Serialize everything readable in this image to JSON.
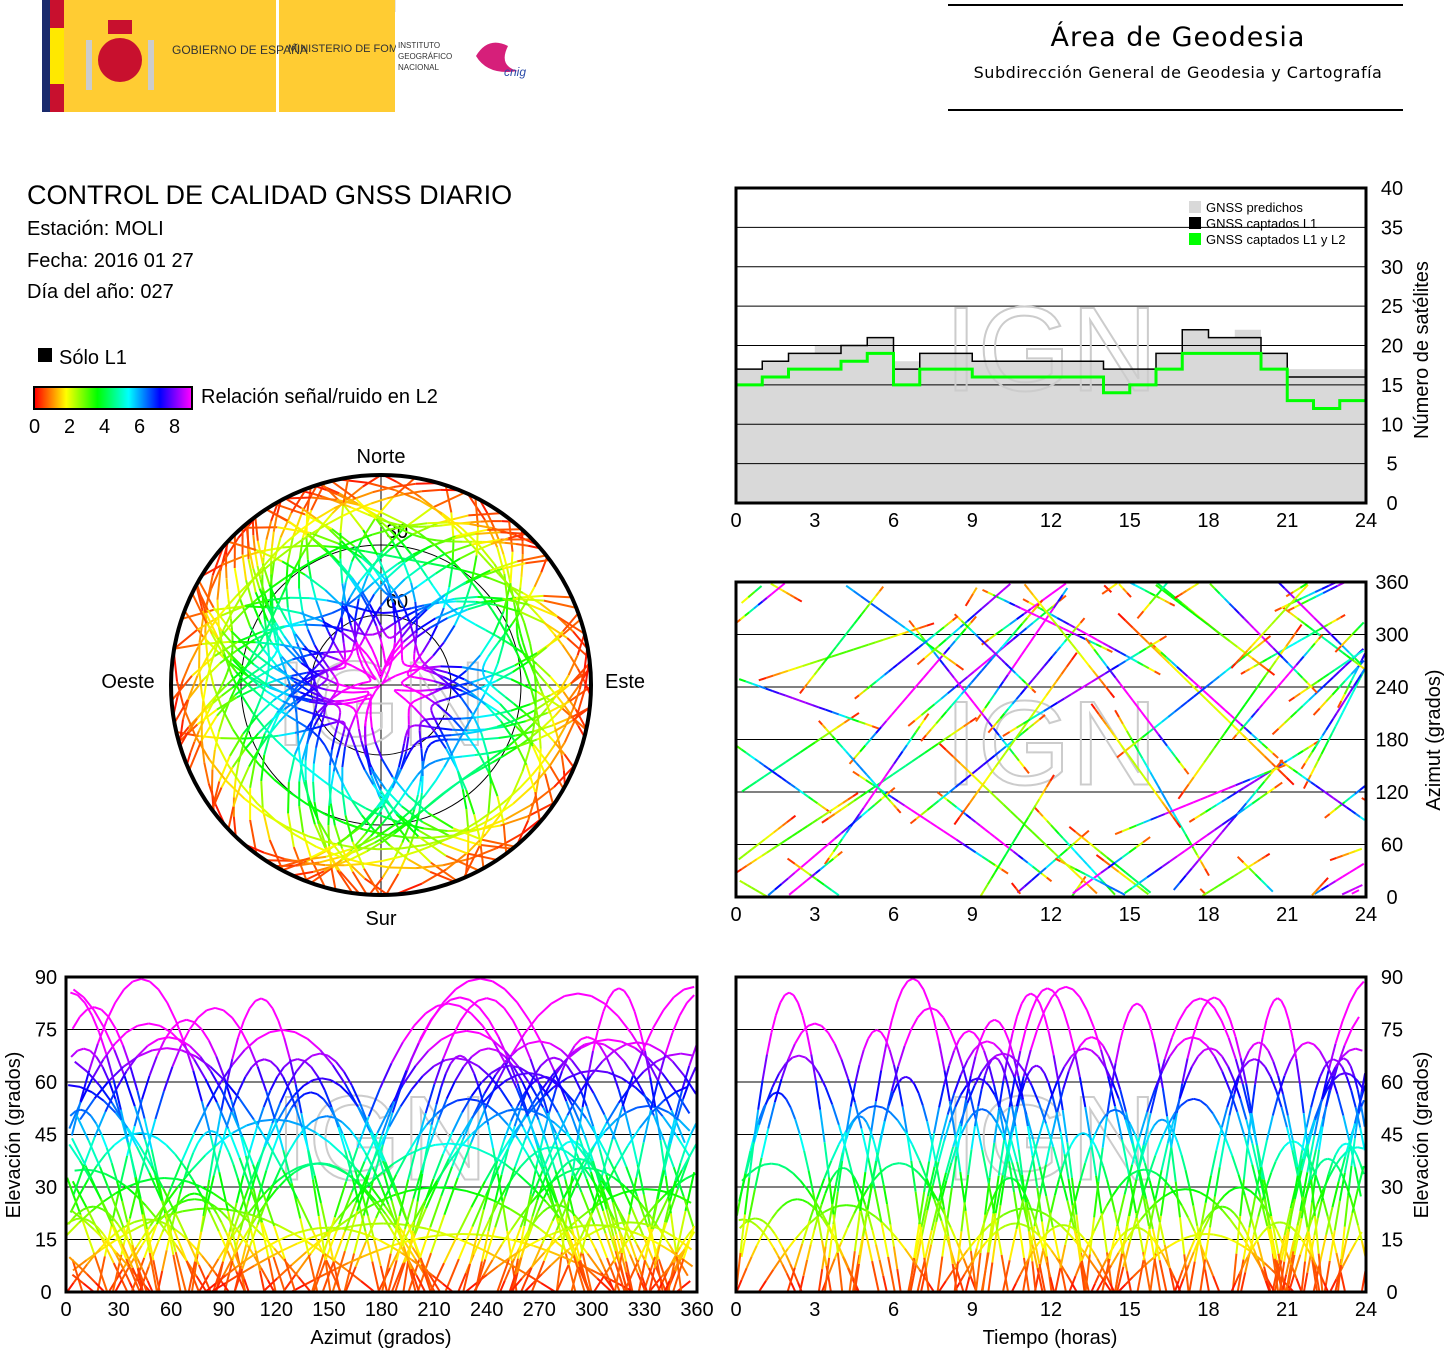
{
  "header": {
    "logo": {
      "gov": "GOBIERNO DE ESPAÑA",
      "ministry": "MINISTERIO DE FOMENTO",
      "institute": "INSTITUTO GEOGRÁFICO NACIONAL",
      "cnig": "cnig"
    },
    "title": "Área de Geodesia",
    "subtitle": "Subdirección General de Geodesia y Cartografía"
  },
  "report": {
    "title": "CONTROL DE CALIDAD GNSS DIARIO",
    "station": "Estación: MOLI",
    "date": "Fecha: 2016 01 27",
    "doy": "Día del año: 027",
    "legend_l1": "Sólo L1",
    "legend_snr": "Relación señal/ruido en L2",
    "snr_ticks": [
      "0",
      "2",
      "4",
      "6",
      "8"
    ]
  },
  "colors": {
    "predicted": "#d9d9d9",
    "l1": "#000000",
    "l1l2": "#00ff00",
    "snr_scale": [
      "#ff0000",
      "#ffff00",
      "#00ff00",
      "#00ffff",
      "#0000ff",
      "#ff00ff"
    ]
  },
  "watermark": "IGN",
  "chart_data": [
    {
      "type": "line",
      "id": "satellites",
      "ylabel": "Número de satélites",
      "xlabel": "",
      "xlim": [
        0,
        24
      ],
      "ylim": [
        0,
        40
      ],
      "xticks": [
        "0",
        "3",
        "6",
        "9",
        "12",
        "15",
        "18",
        "21",
        "24"
      ],
      "yticks": [
        "0",
        "5",
        "10",
        "15",
        "20",
        "25",
        "30",
        "35",
        "40"
      ],
      "legend": [
        "GNSS predichos",
        "GNSS captados L1",
        "GNSS captados L1 y L2"
      ],
      "legend_position": "top-right",
      "x": [
        0,
        1,
        2,
        3,
        4,
        5,
        6,
        7,
        8,
        9,
        10,
        11,
        12,
        13,
        14,
        15,
        16,
        17,
        18,
        19,
        20,
        21,
        22,
        23,
        24
      ],
      "series": [
        {
          "name": "GNSS predichos",
          "values": [
            17,
            18,
            19,
            20,
            20,
            21,
            18,
            19,
            19,
            18,
            18,
            18,
            18,
            18,
            17,
            17,
            19,
            22,
            21,
            22,
            19,
            17,
            17,
            17,
            16
          ]
        },
        {
          "name": "GNSS captados L1",
          "values": [
            17,
            18,
            19,
            19,
            20,
            21,
            17,
            19,
            19,
            18,
            18,
            18,
            18,
            18,
            17,
            17,
            19,
            22,
            21,
            21,
            19,
            16,
            16,
            16,
            15
          ]
        },
        {
          "name": "GNSS captados L1 y L2",
          "values": [
            15,
            16,
            17,
            17,
            18,
            19,
            15,
            17,
            17,
            16,
            16,
            16,
            16,
            16,
            14,
            15,
            17,
            19,
            19,
            19,
            17,
            13,
            12,
            13,
            12
          ]
        }
      ]
    },
    {
      "type": "scatter",
      "id": "azimuth-time",
      "ylabel": "Azimut (grados)",
      "xlim": [
        0,
        24
      ],
      "ylim": [
        0,
        360
      ],
      "xticks": [
        "0",
        "3",
        "6",
        "9",
        "12",
        "15",
        "18",
        "21",
        "24"
      ],
      "yticks": [
        "0",
        "60",
        "120",
        "180",
        "240",
        "300",
        "360"
      ]
    },
    {
      "type": "scatter",
      "id": "elevation-azimuth",
      "xlabel": "Azimut (grados)",
      "ylabel": "Elevación (grados)",
      "xlim": [
        0,
        360
      ],
      "ylim": [
        0,
        90
      ],
      "xticks": [
        "0",
        "30",
        "60",
        "90",
        "120",
        "150",
        "180",
        "210",
        "240",
        "270",
        "300",
        "330",
        "360"
      ],
      "yticks": [
        "0",
        "15",
        "30",
        "45",
        "60",
        "75",
        "90"
      ]
    },
    {
      "type": "scatter",
      "id": "elevation-time",
      "xlabel": "Tiempo (horas)",
      "ylabel": "Elevación (grados)",
      "xlim": [
        0,
        24
      ],
      "ylim": [
        0,
        90
      ],
      "xticks": [
        "0",
        "3",
        "6",
        "9",
        "12",
        "15",
        "18",
        "21",
        "24"
      ],
      "yticks": [
        "0",
        "15",
        "30",
        "45",
        "60",
        "75",
        "90"
      ]
    },
    {
      "type": "scatter",
      "id": "skyplot",
      "labels": {
        "north": "Norte",
        "south": "Sur",
        "west": "Oeste",
        "east": "Este"
      },
      "rings": [
        "30",
        "60"
      ]
    }
  ]
}
